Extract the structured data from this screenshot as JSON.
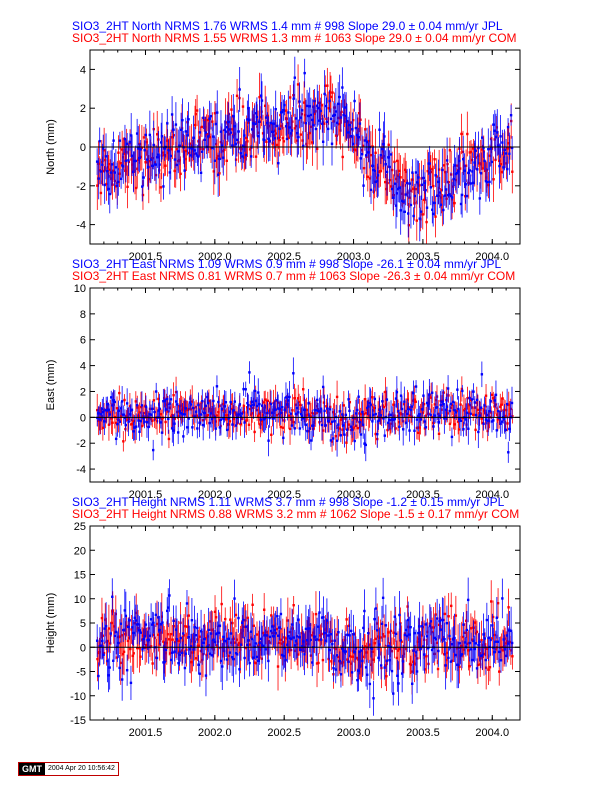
{
  "colors": {
    "jpl": "#0000ff",
    "com": "#ff0000",
    "axis": "#000000"
  },
  "stamp": {
    "logo": "GMT",
    "timestamp": "2004 Apr 20 10:56:42"
  },
  "chart_data": [
    {
      "type": "scatter",
      "component": "north",
      "title_lines": [
        "SIO3_2HT North NRMS 1.76 WRMS  1.4 mm # 998 Slope   29.0 ±  0.04 mm/yr JPL",
        "SIO3_2HT North NRMS 1.55 WRMS  1.3 mm # 1063 Slope   29.0 ±  0.04 mm/yr COM"
      ],
      "ylabel": "North (mm)",
      "xlim": [
        2001.1,
        2004.2
      ],
      "ylim": [
        -5,
        5
      ],
      "xticks": [
        "2001.5",
        "2002.0",
        "2002.5",
        "2003.0",
        "2003.5",
        "2004.0"
      ],
      "yticks": [
        "-4",
        "-2",
        "0",
        "2",
        "4"
      ],
      "series": [
        {
          "name": "JPL",
          "n": 998,
          "nrms": 1.76,
          "wrms_mm": 1.4,
          "slope_mm_yr": 29.0,
          "slope_sigma": 0.04
        },
        {
          "name": "COM",
          "n": 1063,
          "nrms": 1.55,
          "wrms_mm": 1.3,
          "slope_mm_yr": 29.0,
          "slope_sigma": 0.04
        }
      ],
      "trend_knots": [
        [
          2001.15,
          -1.2
        ],
        [
          2001.5,
          -0.6
        ],
        [
          2001.9,
          0.3
        ],
        [
          2002.3,
          0.9
        ],
        [
          2002.6,
          1.2
        ],
        [
          2002.85,
          1.7
        ],
        [
          2002.95,
          1.2
        ],
        [
          2003.1,
          -0.4
        ],
        [
          2003.4,
          -2.4
        ],
        [
          2003.6,
          -2.2
        ],
        [
          2003.9,
          -0.8
        ],
        [
          2004.15,
          0.0
        ]
      ],
      "scatter_sd": 0.9
    },
    {
      "type": "scatter",
      "component": "east",
      "title_lines": [
        "SIO3_2HT East NRMS 1.09 WRMS  0.9 mm # 998 Slope  -26.1 ±  0.04 mm/yr JPL",
        "SIO3_2HT East NRMS 0.81 WRMS  0.7 mm # 1063 Slope  -26.3 ±  0.04 mm/yr COM"
      ],
      "ylabel": "East (mm)",
      "xlim": [
        2001.1,
        2004.2
      ],
      "ylim": [
        -5,
        10
      ],
      "xticks": [
        "2001.5",
        "2002.0",
        "2002.5",
        "2003.0",
        "2003.5",
        "2004.0"
      ],
      "yticks": [
        "-4",
        "-2",
        "0",
        "2",
        "4",
        "6",
        "8",
        "10"
      ],
      "series": [
        {
          "name": "JPL",
          "n": 998,
          "nrms": 1.09,
          "wrms_mm": 0.9,
          "slope_mm_yr": -26.1,
          "slope_sigma": 0.04
        },
        {
          "name": "COM",
          "n": 1063,
          "nrms": 0.81,
          "wrms_mm": 0.7,
          "slope_mm_yr": -26.3,
          "slope_sigma": 0.04
        }
      ],
      "trend_knots": [
        [
          2001.15,
          0.1
        ],
        [
          2001.6,
          0.5
        ],
        [
          2001.9,
          0.2
        ],
        [
          2002.3,
          0.6
        ],
        [
          2002.7,
          0.3
        ],
        [
          2002.9,
          -0.2
        ],
        [
          2003.1,
          0.2
        ],
        [
          2003.6,
          0.5
        ],
        [
          2004.15,
          0.1
        ]
      ],
      "scatter_sd": 0.9
    },
    {
      "type": "scatter",
      "component": "height",
      "title_lines": [
        "SIO3_2HT Height NRMS 1.11 WRMS  3.7 mm # 998 Slope   -1.2 ±  0.15 mm/yr JPL",
        "SIO3_2HT Height NRMS 0.88 WRMS  3.2 mm # 1062 Slope   -1.5 ±  0.17 mm/yr COM"
      ],
      "ylabel": "Height (mm)",
      "xlim": [
        2001.1,
        2004.2
      ],
      "ylim": [
        -15,
        25
      ],
      "xticks": [
        "2001.5",
        "2002.0",
        "2002.5",
        "2003.0",
        "2003.5",
        "2004.0"
      ],
      "yticks": [
        "-15",
        "-10",
        "-5",
        "0",
        "5",
        "10",
        "15",
        "20",
        "25"
      ],
      "series": [
        {
          "name": "JPL",
          "n": 998,
          "nrms": 1.11,
          "wrms_mm": 3.7,
          "slope_mm_yr": -1.2,
          "slope_sigma": 0.15
        },
        {
          "name": "COM",
          "n": 1062,
          "nrms": 0.88,
          "wrms_mm": 3.2,
          "slope_mm_yr": -1.5,
          "slope_sigma": 0.17
        }
      ],
      "trend_knots": [
        [
          2001.15,
          1.0
        ],
        [
          2001.6,
          2.5
        ],
        [
          2002.0,
          0.5
        ],
        [
          2002.5,
          1.5
        ],
        [
          2002.8,
          2.0
        ],
        [
          2003.0,
          -2.0
        ],
        [
          2003.5,
          1.5
        ],
        [
          2004.15,
          0.5
        ]
      ],
      "scatter_sd": 3.6
    }
  ]
}
